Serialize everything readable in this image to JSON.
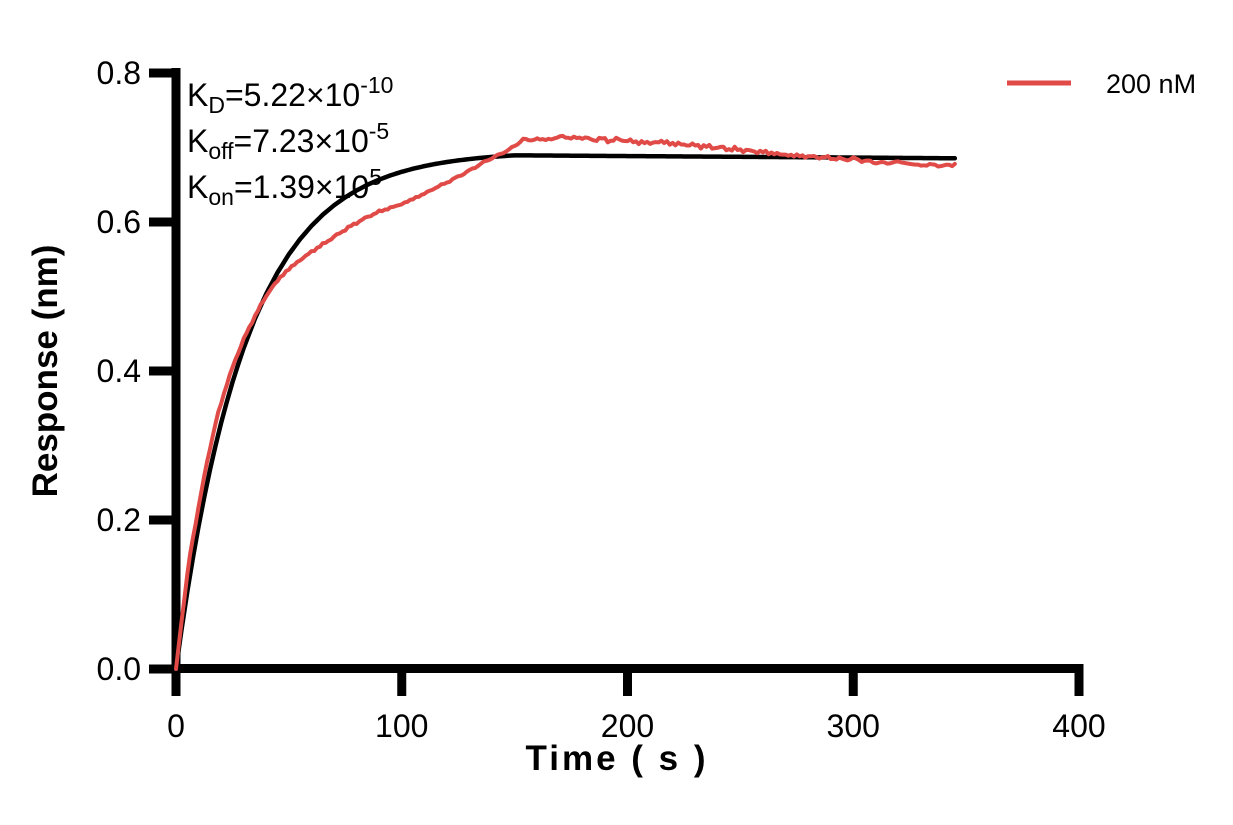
{
  "colors": {
    "background": "#ffffff",
    "axis": "#000000",
    "fit_line": "#000000",
    "measured_line": "#E04B48"
  },
  "chart_data": {
    "type": "line",
    "title": "",
    "xlabel": "Time ( s )",
    "ylabel": "Response (nm)",
    "xlim": [
      0,
      400
    ],
    "ylim": [
      0,
      0.8
    ],
    "grid": false,
    "xticks": {
      "values": [
        0,
        100,
        200,
        300,
        400
      ],
      "labels": [
        "0",
        "100",
        "200",
        "300",
        "400"
      ]
    },
    "yticks": {
      "values": [
        0,
        0.2,
        0.4,
        0.6,
        0.8
      ],
      "labels": [
        "0.0",
        "0.2",
        "0.4",
        "0.6",
        "0.8"
      ]
    },
    "legend": {
      "position": "top-right-outside",
      "entries": [
        {
          "label": "200 nM",
          "color": "#E04B48"
        }
      ]
    },
    "kinetics_annotation": [
      {
        "symbol": "K",
        "subscript": "D",
        "value": "=5.22×10",
        "exponent": "-10"
      },
      {
        "symbol": "K",
        "subscript": "off",
        "value": "=7.23×10",
        "exponent": "-5"
      },
      {
        "symbol": "K",
        "subscript": "on",
        "value": "=1.39×10",
        "exponent": "5"
      }
    ],
    "association_end_s": 148,
    "series": [
      {
        "name": "kinetic fit",
        "role": "fit",
        "color": "#000000",
        "stroke_width": 4.5,
        "noise_amplitude": {
          "association": 0,
          "dissociation": 0
        },
        "points": [
          [
            0,
            0
          ],
          [
            2.5,
            0.0538
          ],
          [
            5,
            0.1036
          ],
          [
            7.5,
            0.1494
          ],
          [
            10,
            0.1917
          ],
          [
            12.5,
            0.2306
          ],
          [
            15,
            0.2667
          ],
          [
            17.5,
            0.2997
          ],
          [
            20,
            0.3305
          ],
          [
            22.5,
            0.3585
          ],
          [
            25,
            0.3848
          ],
          [
            27.5,
            0.4085
          ],
          [
            30,
            0.431
          ],
          [
            35,
            0.4704
          ],
          [
            40,
            0.5038
          ],
          [
            45,
            0.5323
          ],
          [
            50,
            0.5566
          ],
          [
            55,
            0.5772
          ],
          [
            60,
            0.5947
          ],
          [
            65,
            0.6097
          ],
          [
            70,
            0.6224
          ],
          [
            75,
            0.6332
          ],
          [
            80,
            0.6424
          ],
          [
            85,
            0.6502
          ],
          [
            90,
            0.6569
          ],
          [
            95,
            0.6626
          ],
          [
            100,
            0.6674
          ],
          [
            105,
            0.6715
          ],
          [
            110,
            0.675
          ],
          [
            115,
            0.678
          ],
          [
            120,
            0.6805
          ],
          [
            125,
            0.6827
          ],
          [
            130,
            0.6845
          ],
          [
            135,
            0.6861
          ],
          [
            140,
            0.6874
          ],
          [
            145,
            0.6885
          ],
          [
            150,
            0.6895
          ],
          [
            175,
            0.689
          ],
          [
            200,
            0.6885
          ],
          [
            225,
            0.688
          ],
          [
            250,
            0.6875
          ],
          [
            275,
            0.687
          ],
          [
            300,
            0.6865
          ],
          [
            322,
            0.686
          ],
          [
            345,
            0.6855
          ]
        ]
      },
      {
        "name": "200 nM",
        "role": "measured",
        "color": "#E04B48",
        "stroke_width": 4,
        "noise_amplitude": {
          "association": 0.0016,
          "dissociation": 0.003
        },
        "points": [
          [
            0,
            0
          ],
          [
            3,
            0.078
          ],
          [
            6,
            0.15
          ],
          [
            10,
            0.218
          ],
          [
            14,
            0.282
          ],
          [
            18,
            0.336
          ],
          [
            22,
            0.378
          ],
          [
            26,
            0.413
          ],
          [
            30,
            0.443
          ],
          [
            34,
            0.468
          ],
          [
            38,
            0.491
          ],
          [
            42,
            0.51
          ],
          [
            46,
            0.525
          ],
          [
            50,
            0.537
          ],
          [
            55,
            0.549
          ],
          [
            60,
            0.56
          ],
          [
            65,
            0.57
          ],
          [
            70,
            0.58
          ],
          [
            75,
            0.59
          ],
          [
            80,
            0.599
          ],
          [
            85,
            0.607
          ],
          [
            90,
            0.614
          ],
          [
            95,
            0.619
          ],
          [
            100,
            0.624
          ],
          [
            105,
            0.631
          ],
          [
            110,
            0.638
          ],
          [
            115,
            0.646
          ],
          [
            120,
            0.653
          ],
          [
            125,
            0.661
          ],
          [
            130,
            0.669
          ],
          [
            135,
            0.678
          ],
          [
            140,
            0.686
          ],
          [
            145,
            0.693
          ],
          [
            148,
            0.698
          ],
          [
            151,
            0.704
          ],
          [
            154,
            0.712
          ],
          [
            157,
            0.709
          ],
          [
            160,
            0.712
          ],
          [
            164,
            0.71
          ],
          [
            168,
            0.713
          ],
          [
            172,
            0.715
          ],
          [
            176,
            0.712
          ],
          [
            180,
            0.714
          ],
          [
            184,
            0.71
          ],
          [
            188,
            0.712
          ],
          [
            192,
            0.709
          ],
          [
            196,
            0.711
          ],
          [
            200,
            0.709
          ],
          [
            205,
            0.707
          ],
          [
            210,
            0.706
          ],
          [
            215,
            0.708
          ],
          [
            220,
            0.705
          ],
          [
            225,
            0.704
          ],
          [
            230,
            0.703
          ],
          [
            235,
            0.701
          ],
          [
            240,
            0.7
          ],
          [
            245,
            0.698
          ],
          [
            250,
            0.697
          ],
          [
            255,
            0.695
          ],
          [
            260,
            0.694
          ],
          [
            265,
            0.692
          ],
          [
            270,
            0.69
          ],
          [
            275,
            0.689
          ],
          [
            280,
            0.688
          ],
          [
            285,
            0.687
          ],
          [
            290,
            0.686
          ],
          [
            295,
            0.684
          ],
          [
            300,
            0.685
          ],
          [
            305,
            0.682
          ],
          [
            310,
            0.68
          ],
          [
            315,
            0.679
          ],
          [
            320,
            0.681
          ],
          [
            325,
            0.678
          ],
          [
            330,
            0.676
          ],
          [
            335,
            0.677
          ],
          [
            340,
            0.675
          ],
          [
            345,
            0.678
          ]
        ]
      }
    ]
  }
}
